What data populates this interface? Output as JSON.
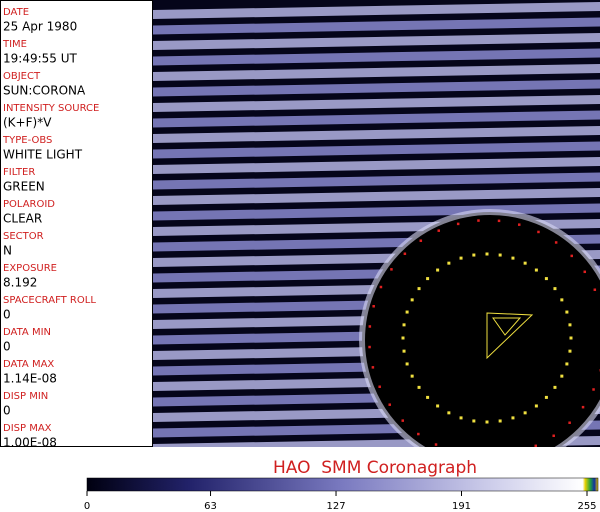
{
  "metadata": [
    {
      "label": "DATE",
      "value": "25 Apr 1980"
    },
    {
      "label": "TIME",
      "value": "19:49:55 UT"
    },
    {
      "label": "OBJECT",
      "value": "SUN:CORONA"
    },
    {
      "label": "INTENSITY SOURCE",
      "value": "(K+F)*V"
    },
    {
      "label": "TYPE-OBS",
      "value": "WHITE LIGHT"
    },
    {
      "label": "FILTER",
      "value": "GREEN"
    },
    {
      "label": "POLAROID",
      "value": "CLEAR"
    },
    {
      "label": "SECTOR",
      "value": "N"
    },
    {
      "label": "EXPOSURE",
      "value": "8.192"
    },
    {
      "label": "SPACECRAFT ROLL",
      "value": "0"
    },
    {
      "label": "DATA MIN",
      "value": "0"
    },
    {
      "label": "DATA MAX",
      "value": "1.14E-08"
    },
    {
      "label": "DISP MIN",
      "value": "0"
    },
    {
      "label": "DISP MAX",
      "value": "1.00E-08"
    }
  ],
  "title": "HAO  SMM Coronagraph",
  "colorbar": {
    "ticks": [
      0,
      63,
      127,
      191,
      255
    ]
  }
}
